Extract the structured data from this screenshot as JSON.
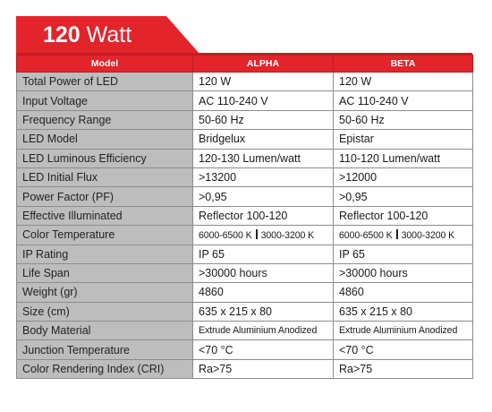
{
  "header": {
    "title_number": "120",
    "title_unit": "Watt"
  },
  "colors": {
    "accent": "#e3242b",
    "label_bg": "#bdbdbd"
  },
  "table": {
    "columns": [
      "Model",
      "ALPHA",
      "BETA"
    ],
    "rows": [
      {
        "label": "Total Power of LED",
        "alpha": "120 W",
        "beta": "120 W"
      },
      {
        "label": "Input Voltage",
        "alpha": "AC 110-240 V",
        "beta": "AC 110-240 V"
      },
      {
        "label": "Frequency Range",
        "alpha": "50-60 Hz",
        "beta": "50-60 Hz"
      },
      {
        "label": "LED Model",
        "alpha": "Bridgelux",
        "beta": "Epistar"
      },
      {
        "label": "LED Luminous Efficiency",
        "alpha": "120-130 Lumen/watt",
        "beta": "110-120 Lumen/watt"
      },
      {
        "label": "LED Initial Flux",
        "alpha": ">13200",
        "beta": ">12000"
      },
      {
        "label": "Power Factor (PF)",
        "alpha": ">0,95",
        "beta": ">0,95"
      },
      {
        "label": "Effective Illuminated",
        "alpha": "Reflector 100-120",
        "beta": "Reflector 100-120"
      },
      {
        "label": "Color Temperature",
        "alpha_a": "6000-6500 K",
        "alpha_b": "3000-3200 K",
        "beta_a": "6000-6500 K",
        "beta_b": "3000-3200 K"
      },
      {
        "label": "IP Rating",
        "alpha": "IP 65",
        "beta": "IP 65"
      },
      {
        "label": "Life Span",
        "alpha": ">30000 hours",
        "beta": ">30000 hours"
      },
      {
        "label": "Weight (gr)",
        "alpha": "4860",
        "beta": "4860"
      },
      {
        "label": "Size (cm)",
        "alpha": "635 x 215 x 80",
        "beta": "635 x 215 x 80"
      },
      {
        "label": "Body Material",
        "alpha": "Extrude Aluminium Anodized",
        "beta": "Extrude Aluminium Anodized"
      },
      {
        "label": "Junction Temperature",
        "alpha": "<70 °C",
        "beta": "<70 °C"
      },
      {
        "label": "Color Rendering Index (CRI)",
        "alpha": "Ra>75",
        "beta": "Ra>75"
      }
    ]
  }
}
